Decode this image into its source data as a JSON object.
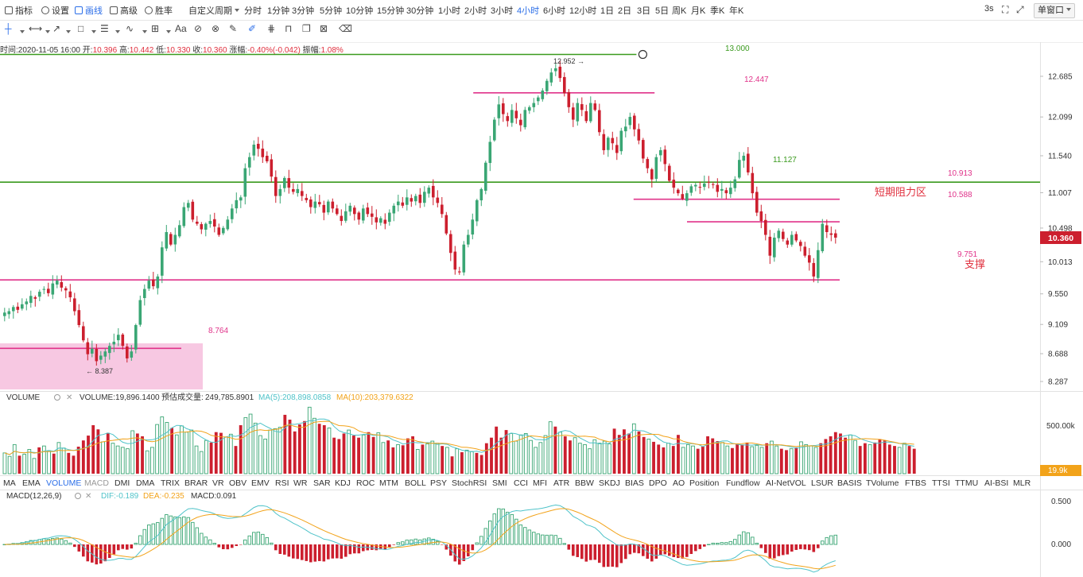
{
  "toolbar": {
    "items": [
      "指标",
      "设置",
      "画线",
      "高级",
      "胜率"
    ],
    "custom_period": "自定义周期",
    "periods": [
      "分时",
      "1分钟",
      "3分钟",
      "5分钟",
      "10分钟",
      "15分钟",
      "30分钟",
      "1小时",
      "2小时",
      "3小时",
      "4小时",
      "6小时",
      "12小时",
      "1日",
      "2日",
      "3日",
      "5日",
      "周K",
      "月K",
      "季K",
      "年K"
    ],
    "active_period": "4小时",
    "refresh": "3s",
    "window_mode": "单窗口"
  },
  "ohlc_bar": {
    "time_label": "时间:",
    "time": "2020-11-05 16:00",
    "open_label": "开:",
    "open": "10.396",
    "high_label": "高:",
    "high": "10.442",
    "low_label": "低:",
    "low": "10.330",
    "close_label": "收:",
    "close": "10.360",
    "change_label": "涨幅:",
    "change": "-0.40%(-0.042)",
    "amp_label": "振幅:",
    "amp": "1.08%"
  },
  "colors": {
    "up": "#3aa674",
    "down": "#cc1f2e",
    "support": "#e0338a",
    "green_line": "#3a9a1e",
    "ma5": "#4fc3c9",
    "ma10": "#f2a31a"
  },
  "chart_data": {
    "type": "candlestick",
    "price_axis": {
      "ticks": [
        12.685,
        12.099,
        11.54,
        11.007,
        10.498,
        10.013,
        9.55,
        9.109,
        8.688,
        8.287
      ],
      "range": [
        8.1,
        13.3
      ]
    },
    "last_price": "10.360",
    "annotations": {
      "high_marker": "12.952 →",
      "low_marker": "← 8.387",
      "level_13": "13.000",
      "level_12447": "12.447",
      "level_11127": "11.127",
      "level_10913": "10.913",
      "level_10588": "10.588",
      "level_9751": "9.751",
      "level_8764": "8.764",
      "resistance_zone": "短期阻力区",
      "support": "支撑"
    },
    "horizontal_lines": [
      {
        "price": 13.0,
        "color": "green",
        "from": 0,
        "to": 0.667
      },
      {
        "price": 12.447,
        "color": "pink",
        "from": 0.496,
        "to": 0.686
      },
      {
        "price": 11.16,
        "color": "green",
        "from": 0,
        "to": 1
      },
      {
        "price": 10.913,
        "color": "pink",
        "from": 0.664,
        "to": 0.88
      },
      {
        "price": 10.588,
        "color": "pink",
        "from": 0.72,
        "to": 0.88
      },
      {
        "price": 9.751,
        "color": "pink",
        "from": 0,
        "to": 0.88
      },
      {
        "price": 8.764,
        "color": "pink",
        "from": 0,
        "to": 0.19
      }
    ],
    "volume": {
      "name": "VOLUME",
      "value": "VOLUME:19,896.1400",
      "est_label": "预估成交量:",
      "est": "249,785.8901",
      "ma5": "MA(5):208,898.0858",
      "ma10": "MA(10):203,379.6322",
      "tick": "500.00k",
      "last": "19.9k"
    },
    "macd": {
      "name": "MACD(12,26,9)",
      "dif": "DIF:-0.189",
      "dea": "DEA:-0.235",
      "macd": "MACD:0.091",
      "ticks": [
        "0.500",
        "0.000"
      ]
    },
    "closes": [
      9.28,
      9.3,
      9.36,
      9.32,
      9.4,
      9.44,
      9.52,
      9.48,
      9.58,
      9.62,
      9.56,
      9.7,
      9.74,
      9.64,
      9.6,
      9.5,
      9.3,
      9.1,
      8.88,
      8.68,
      8.76,
      8.58,
      8.66,
      8.72,
      8.8,
      8.86,
      8.96,
      8.8,
      8.62,
      8.72,
      9.1,
      9.46,
      9.62,
      9.74,
      9.66,
      9.8,
      10.22,
      10.44,
      10.26,
      10.4,
      10.54,
      10.8,
      10.86,
      10.62,
      10.56,
      10.48,
      10.56,
      10.6,
      10.52,
      10.4,
      10.5,
      10.62,
      10.78,
      10.9,
      10.94,
      11.36,
      11.52,
      11.7,
      11.64,
      11.52,
      11.46,
      11.24,
      10.96,
      11.06,
      11.22,
      11.08,
      11.02,
      11.06,
      10.96,
      10.9,
      10.8,
      10.88,
      10.84,
      10.72,
      10.88,
      10.78,
      10.7,
      10.6,
      10.74,
      10.82,
      10.7,
      10.62,
      10.78,
      10.7,
      10.66,
      10.58,
      10.64,
      10.56,
      10.72,
      10.82,
      10.88,
      10.82,
      10.94,
      10.88,
      10.96,
      10.86,
      11.02,
      11.08,
      10.94,
      10.86,
      10.7,
      10.42,
      10.14,
      9.9,
      9.86,
      10.26,
      10.4,
      10.62,
      10.9,
      11.06,
      11.44,
      11.74,
      12.06,
      12.28,
      12.14,
      12.04,
      12.2,
      12.08,
      11.98,
      12.2,
      12.24,
      12.3,
      12.38,
      12.48,
      12.62,
      12.74,
      12.8,
      12.66,
      12.44,
      12.24,
      12.06,
      12.3,
      12.2,
      12.04,
      12.3,
      12.2,
      11.88,
      11.62,
      11.8,
      11.72,
      11.58,
      11.9,
      11.96,
      12.1,
      11.92,
      11.76,
      11.5,
      11.36,
      11.2,
      11.52,
      11.62,
      11.42,
      11.18,
      11.08,
      11.0,
      10.92,
      11.0,
      11.1,
      11.12,
      11.08,
      11.14,
      11.16,
      11.12,
      11.02,
      11.06,
      11.0,
      11.08,
      11.2,
      11.48,
      11.54,
      11.3,
      11.0,
      10.72,
      10.6,
      10.4,
      10.1,
      10.36,
      10.46,
      10.34,
      10.26,
      10.4,
      10.32,
      10.24,
      10.1,
      10.0,
      9.8,
      10.18,
      10.56,
      10.44,
      10.4,
      10.36
    ],
    "volumes": [
      30,
      25,
      42,
      26,
      28,
      35,
      22,
      38,
      40,
      33,
      29,
      45,
      37,
      30,
      26,
      39,
      48,
      55,
      70,
      64,
      46,
      59,
      44,
      40,
      38,
      36,
      62,
      58,
      54,
      33,
      38,
      71,
      82,
      74,
      66,
      56,
      69,
      60,
      63,
      40,
      32,
      48,
      45,
      60,
      59,
      53,
      57,
      40,
      70,
      81,
      86,
      73,
      55,
      50,
      63,
      65,
      67,
      85,
      78,
      61,
      71,
      76,
      96,
      80,
      72,
      70,
      66,
      52,
      50,
      58,
      63,
      55,
      52,
      56,
      60,
      53,
      59,
      45,
      48,
      38,
      42,
      41,
      51,
      54,
      35,
      42,
      43,
      47,
      44,
      40,
      38,
      25,
      36,
      31,
      34,
      32,
      30,
      27,
      44,
      52,
      68,
      52,
      63,
      58,
      47,
      56,
      58,
      48,
      38,
      45,
      55,
      75,
      68,
      60,
      54,
      48,
      52,
      44,
      42,
      36,
      49,
      44,
      47,
      43,
      65,
      56,
      64,
      58,
      72,
      61,
      53,
      50,
      46,
      42,
      38,
      44,
      40,
      56,
      38,
      42,
      40,
      36,
      39,
      54,
      51,
      47,
      45,
      40,
      37,
      43,
      42,
      45,
      39,
      41,
      38,
      44,
      47,
      40,
      36,
      34,
      36,
      38,
      46,
      42,
      40,
      38,
      44,
      50,
      54,
      60,
      58,
      52,
      56,
      48,
      40,
      44,
      42,
      45,
      50,
      48,
      42,
      40,
      38,
      44,
      40,
      36
    ]
  }
}
